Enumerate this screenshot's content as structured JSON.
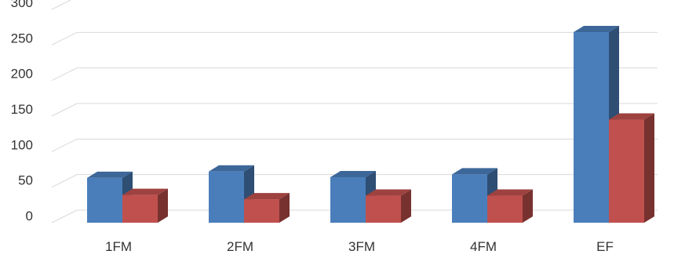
{
  "chart_data": {
    "type": "bar",
    "categories": [
      "1FM",
      "2FM",
      "3FM",
      "4FM",
      "EF"
    ],
    "series": [
      {
        "values": [
          63,
          72,
          64,
          68,
          268
        ],
        "color": "#4a7ebb"
      },
      {
        "values": [
          39,
          33,
          38,
          38,
          145
        ],
        "color": "#c0504d"
      }
    ],
    "ylim": [
      0,
      300
    ],
    "yticks": [
      0,
      50,
      100,
      150,
      200,
      250,
      300
    ],
    "grid": true,
    "style": "3d-clustered-column"
  }
}
